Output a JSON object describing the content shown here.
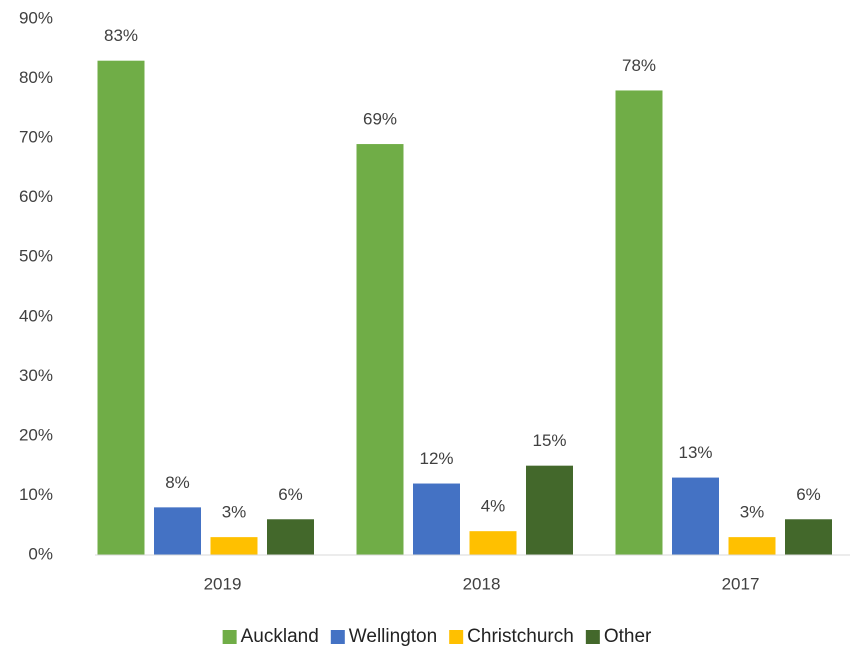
{
  "chart_data": {
    "type": "bar",
    "categories": [
      "2019",
      "2018",
      "2017"
    ],
    "series": [
      {
        "name": "Auckland",
        "color": "#70ad47",
        "values": [
          83,
          69,
          78
        ],
        "value_labels": [
          "83%",
          "69%",
          "78%"
        ]
      },
      {
        "name": "Wellington",
        "color": "#4472c4",
        "values": [
          8,
          12,
          13
        ],
        "value_labels": [
          "8%",
          "12%",
          "13%"
        ]
      },
      {
        "name": "Christchurch",
        "color": "#ffc000",
        "values": [
          3,
          4,
          3
        ],
        "value_labels": [
          "3%",
          "4%",
          "3%"
        ]
      },
      {
        "name": "Other",
        "color": "#43682b",
        "values": [
          6,
          15,
          6
        ],
        "value_labels": [
          "6%",
          "15%",
          "6%"
        ]
      }
    ],
    "ylim": [
      0,
      90
    ],
    "yticks": [
      {
        "value": 0,
        "label": "0%"
      },
      {
        "value": 10,
        "label": "10%"
      },
      {
        "value": 20,
        "label": "20%"
      },
      {
        "value": 30,
        "label": "30%"
      },
      {
        "value": 40,
        "label": "40%"
      },
      {
        "value": 50,
        "label": "50%"
      },
      {
        "value": 60,
        "label": "60%"
      },
      {
        "value": 70,
        "label": "70%"
      },
      {
        "value": 80,
        "label": "80%"
      },
      {
        "value": 90,
        "label": "90%"
      }
    ],
    "grid": false,
    "legend": "bottom"
  }
}
